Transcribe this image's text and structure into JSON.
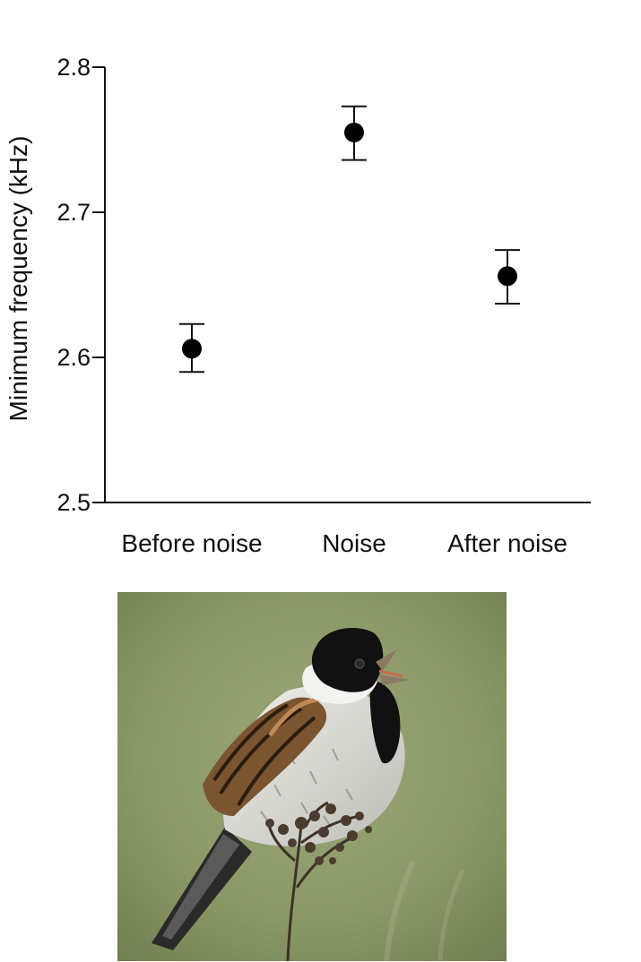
{
  "chart_data": {
    "type": "scatter",
    "title": "",
    "xlabel": "",
    "ylabel": "Minimum frequency (kHz)",
    "categories": [
      "Before noise",
      "Noise",
      "After noise"
    ],
    "series": [
      {
        "values": [
          2.606,
          2.755,
          2.656
        ],
        "error_low": [
          2.59,
          2.736,
          2.637
        ],
        "error_high": [
          2.623,
          2.773,
          2.674
        ]
      }
    ],
    "ylim": [
      2.5,
      2.8
    ],
    "yticks": [
      "2.5",
      "2.6",
      "2.7",
      "2.8"
    ],
    "grid": false,
    "legend": "none",
    "marker_color": "#000000"
  },
  "photo": {
    "subject": "bird-photo",
    "colors": {
      "background": "#8a9866",
      "head": "#111111",
      "collar": "#f2f2f0",
      "wing": "#8a5a2e",
      "breast": "#dcdcd8"
    }
  }
}
